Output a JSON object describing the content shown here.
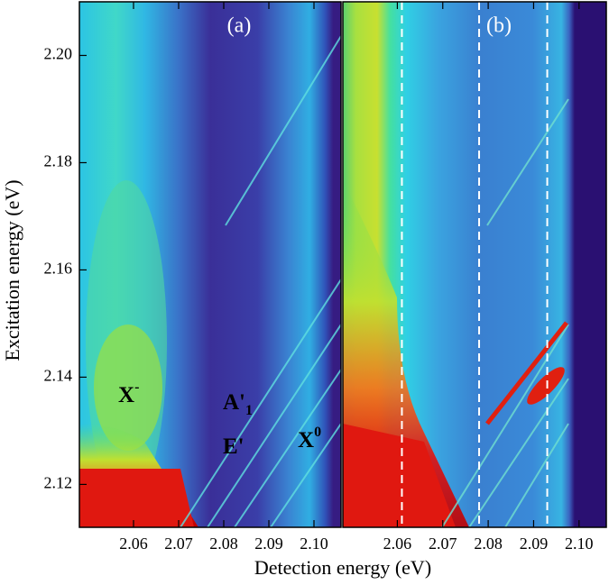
{
  "xlabel": "Detection energy (eV)",
  "ylabel": "Excitation energy (eV)",
  "chart_data": [
    {
      "type": "heatmap",
      "panel_label": "(a)",
      "xlim": [
        2.048,
        2.106
      ],
      "xticks": [
        2.06,
        2.07,
        2.08,
        2.09,
        {
          "value": 2.1,
          "label": "2.10"
        }
      ],
      "ylim": [
        2.112,
        2.21
      ],
      "yticks": [
        2.12,
        2.14,
        2.16,
        2.18,
        {
          "value": 2.2,
          "label": "2.20"
        }
      ],
      "annotations": [
        {
          "text": "X",
          "sup": "-"
        },
        {
          "text": "A'",
          "sub": "1"
        },
        {
          "text": "E'"
        },
        {
          "text": "X",
          "sup": "0"
        }
      ]
    },
    {
      "type": "heatmap",
      "panel_label": "(b)",
      "xlim": [
        2.048,
        2.106
      ],
      "xticks": [
        2.06,
        2.07,
        2.08,
        2.09,
        {
          "value": 2.1,
          "label": "2.10"
        }
      ],
      "ylim": [
        2.112,
        2.21
      ],
      "cut_lines_x": [
        2.061,
        2.078,
        2.093
      ]
    }
  ]
}
